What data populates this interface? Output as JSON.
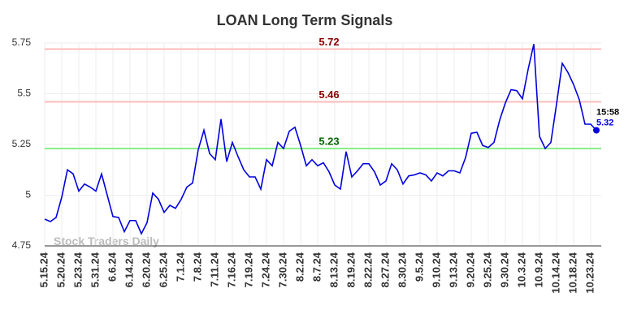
{
  "chart_data": {
    "type": "line",
    "title": "LOAN Long Term Signals",
    "categories": [
      "5.15.24",
      null,
      null,
      "5.20.24",
      null,
      null,
      "5.23.24",
      null,
      null,
      "5.31.24",
      null,
      null,
      "6.6.24",
      null,
      null,
      "6.14.24",
      null,
      null,
      "6.20.24",
      null,
      null,
      "6.25.24",
      null,
      null,
      "7.1.24",
      null,
      null,
      "7.8.24",
      null,
      null,
      "7.11.24",
      null,
      null,
      "7.16.24",
      null,
      null,
      "7.19.24",
      null,
      null,
      "7.24.24",
      null,
      null,
      "7.30.24",
      null,
      null,
      "8.2.24",
      null,
      null,
      "8.7.24",
      null,
      null,
      "8.13.24",
      null,
      null,
      "8.19.24",
      null,
      null,
      "8.22.24",
      null,
      null,
      "8.27.24",
      null,
      null,
      "8.30.24",
      null,
      null,
      "9.5.24",
      null,
      null,
      "9.10.24",
      null,
      null,
      "9.13.24",
      null,
      null,
      "9.20.24",
      null,
      null,
      "9.25.24",
      null,
      null,
      "9.30.24",
      null,
      null,
      "10.3.24",
      null,
      null,
      "10.9.24",
      null,
      null,
      "10.14.24",
      null,
      null,
      "10.18.24",
      null,
      null,
      "10.23.24",
      null
    ],
    "values": [
      4.882,
      4.87,
      4.89,
      4.99,
      5.125,
      5.105,
      5.02,
      5.055,
      5.04,
      5.02,
      5.105,
      5.0,
      4.895,
      4.89,
      4.82,
      4.875,
      4.875,
      4.81,
      4.865,
      5.01,
      4.98,
      4.915,
      4.95,
      4.935,
      4.98,
      5.04,
      5.06,
      5.225,
      5.32,
      5.205,
      5.175,
      5.375,
      5.165,
      5.26,
      5.19,
      5.125,
      5.09,
      5.09,
      5.03,
      5.175,
      5.145,
      5.26,
      5.23,
      5.315,
      5.335,
      5.245,
      5.145,
      5.175,
      5.145,
      5.16,
      5.115,
      5.05,
      5.03,
      5.215,
      5.09,
      5.12,
      5.155,
      5.155,
      5.115,
      5.05,
      5.07,
      5.155,
      5.125,
      5.055,
      5.095,
      5.1,
      5.11,
      5.1,
      5.07,
      5.11,
      5.095,
      5.12,
      5.12,
      5.11,
      5.185,
      5.305,
      5.31,
      5.245,
      5.235,
      5.26,
      5.37,
      5.455,
      5.52,
      5.515,
      5.475,
      5.62,
      5.745,
      5.29,
      5.23,
      5.26,
      5.45,
      5.65,
      5.605,
      5.545,
      5.47,
      5.35,
      5.35,
      5.32
    ],
    "color": "#0000dd",
    "ylim": [
      4.75,
      5.75
    ],
    "yticks": [
      4.75,
      5,
      5.25,
      5.5,
      5.75
    ],
    "grid": true,
    "reference_lines": [
      {
        "value": 5.72,
        "color": "#ffbbbb",
        "label_color": "#8b0000"
      },
      {
        "value": 5.46,
        "color": "#ffbbbb",
        "label_color": "#8b0000"
      },
      {
        "value": 5.23,
        "color": "#88ee88",
        "label_color": "#006400"
      }
    ],
    "last_time": "15:58",
    "watermark": "Stock Traders Daily"
  }
}
